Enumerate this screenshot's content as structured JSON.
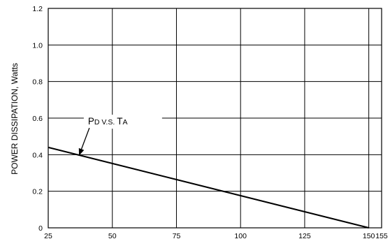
{
  "chart_data": {
    "type": "line",
    "title": "",
    "xlabel": "",
    "ylabel": "POWER DISSIPATION, Watts",
    "xlim": [
      25,
      155
    ],
    "ylim": [
      0,
      1.2
    ],
    "x_ticks": [
      25,
      50,
      75,
      100,
      125,
      150,
      155
    ],
    "x_tick_labels": [
      "25",
      "50",
      "75",
      "100",
      "125",
      "150",
      "155"
    ],
    "y_ticks": [
      0,
      0.2,
      0.4,
      0.6,
      0.8,
      1.0,
      1.2
    ],
    "y_tick_labels": [
      "0",
      "0.2",
      "0.4",
      "0.6",
      "0.8",
      "1.0",
      "1.2"
    ],
    "grid": true,
    "series": [
      {
        "x": [
          25,
          150
        ],
        "y": [
          0.44,
          0.0
        ]
      }
    ],
    "annotation": {
      "parts": [
        {
          "text": "P",
          "size": "large"
        },
        {
          "text": "D",
          "size": "small"
        },
        {
          "text": " V.S. ",
          "size": "small"
        },
        {
          "text": "T",
          "size": "large"
        },
        {
          "text": "A",
          "size": "small"
        }
      ],
      "label_at": {
        "x": 40.5,
        "y": 0.565
      },
      "arrow_to": {
        "x": 37,
        "y": 0.395
      }
    }
  }
}
